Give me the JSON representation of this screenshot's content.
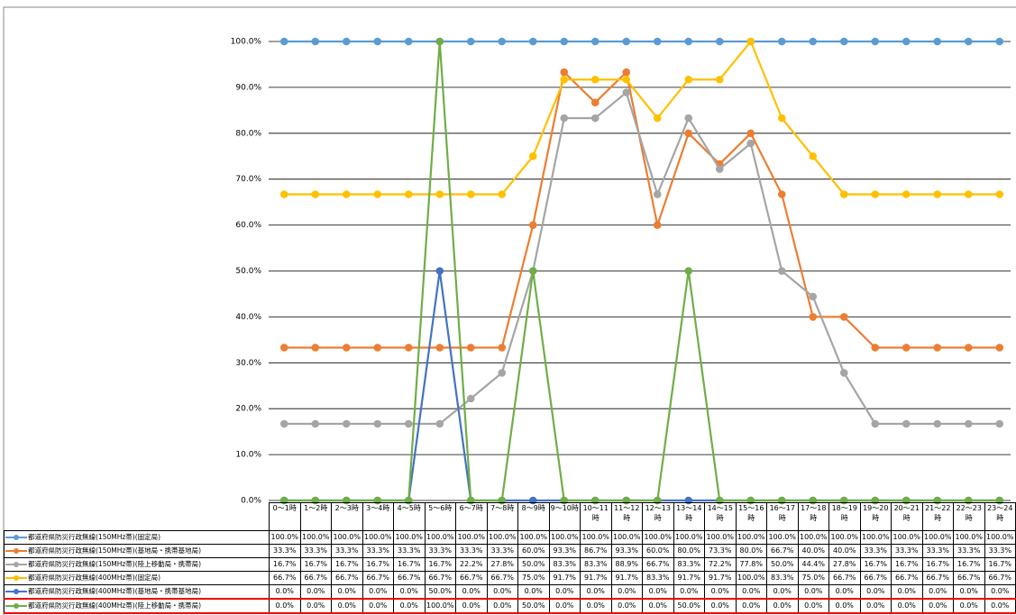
{
  "chart_data": {
    "type": "line",
    "categories": [
      "0～1時",
      "1～2時",
      "2～3時",
      "3～4時",
      "4～5時",
      "5～6時",
      "6～7時",
      "7～8時",
      "8～9時",
      "9～10時",
      "10～11時",
      "11～12時",
      "12～13時",
      "13～14時",
      "14～15時",
      "15～16時",
      "16～17時",
      "17～18時",
      "18～19時",
      "19～20時",
      "20～21時",
      "21～22時",
      "22～23時",
      "23～24時"
    ],
    "ylim": [
      0,
      100
    ],
    "yticks": [
      {
        "value": 0,
        "label": "0.0%"
      },
      {
        "value": 10,
        "label": "10.0%"
      },
      {
        "value": 20,
        "label": "20.0%"
      },
      {
        "value": 30,
        "label": "30.0%"
      },
      {
        "value": 40,
        "label": "40.0%"
      },
      {
        "value": 50,
        "label": "50.0%"
      },
      {
        "value": 60,
        "label": "60.0%"
      },
      {
        "value": 70,
        "label": "70.0%"
      },
      {
        "value": 80,
        "label": "80.0%"
      },
      {
        "value": 90,
        "label": "90.0%"
      },
      {
        "value": 100,
        "label": "100.0%"
      }
    ],
    "grid": true,
    "series": [
      {
        "name": "都道府県防災行政無線(150MHz帯)(固定局)",
        "color": "#5b9bd5",
        "values": [
          100,
          100,
          100,
          100,
          100,
          100,
          100,
          100,
          100,
          100,
          100,
          100,
          100,
          100,
          100,
          100,
          100,
          100,
          100,
          100,
          100,
          100,
          100,
          100
        ],
        "value_labels": [
          "100.0%",
          "100.0%",
          "100.0%",
          "100.0%",
          "100.0%",
          "100.0%",
          "100.0%",
          "100.0%",
          "100.0%",
          "100.0%",
          "100.0%",
          "100.0%",
          "100.0%",
          "100.0%",
          "100.0%",
          "100.0%",
          "100.0%",
          "100.0%",
          "100.0%",
          "100.0%",
          "100.0%",
          "100.0%",
          "100.0%",
          "100.0%"
        ]
      },
      {
        "name": "都道府県防災行政無線(150MHz帯)(基地局・携帯基地局)",
        "color": "#ed7d31",
        "values": [
          33.3,
          33.3,
          33.3,
          33.3,
          33.3,
          33.3,
          33.3,
          33.3,
          60.0,
          93.3,
          86.7,
          93.3,
          60.0,
          80.0,
          73.3,
          80.0,
          66.7,
          40.0,
          40.0,
          33.3,
          33.3,
          33.3,
          33.3,
          33.3
        ],
        "value_labels": [
          "33.3%",
          "33.3%",
          "33.3%",
          "33.3%",
          "33.3%",
          "33.3%",
          "33.3%",
          "33.3%",
          "60.0%",
          "93.3%",
          "86.7%",
          "93.3%",
          "60.0%",
          "80.0%",
          "73.3%",
          "80.0%",
          "66.7%",
          "40.0%",
          "40.0%",
          "33.3%",
          "33.3%",
          "33.3%",
          "33.3%",
          "33.3%"
        ]
      },
      {
        "name": "都道府県防災行政無線(150MHz帯)(陸上移動局・携帯局)",
        "color": "#a5a5a5",
        "values": [
          16.7,
          16.7,
          16.7,
          16.7,
          16.7,
          16.7,
          22.2,
          27.8,
          50.0,
          83.3,
          83.3,
          88.9,
          66.7,
          83.3,
          72.2,
          77.8,
          50.0,
          44.4,
          27.8,
          16.7,
          16.7,
          16.7,
          16.7,
          16.7
        ],
        "value_labels": [
          "16.7%",
          "16.7%",
          "16.7%",
          "16.7%",
          "16.7%",
          "16.7%",
          "22.2%",
          "27.8%",
          "50.0%",
          "83.3%",
          "83.3%",
          "88.9%",
          "66.7%",
          "83.3%",
          "72.2%",
          "77.8%",
          "50.0%",
          "44.4%",
          "27.8%",
          "16.7%",
          "16.7%",
          "16.7%",
          "16.7%",
          "16.7%"
        ]
      },
      {
        "name": "都道府県防災行政無線(400MHz帯)(固定局)",
        "color": "#ffc000",
        "values": [
          66.7,
          66.7,
          66.7,
          66.7,
          66.7,
          66.7,
          66.7,
          66.7,
          75.0,
          91.7,
          91.7,
          91.7,
          83.3,
          91.7,
          91.7,
          100.0,
          83.3,
          75.0,
          66.7,
          66.7,
          66.7,
          66.7,
          66.7,
          66.7
        ],
        "value_labels": [
          "66.7%",
          "66.7%",
          "66.7%",
          "66.7%",
          "66.7%",
          "66.7%",
          "66.7%",
          "66.7%",
          "75.0%",
          "91.7%",
          "91.7%",
          "91.7%",
          "83.3%",
          "91.7%",
          "91.7%",
          "100.0%",
          "83.3%",
          "75.0%",
          "66.7%",
          "66.7%",
          "66.7%",
          "66.7%",
          "66.7%",
          "66.7%"
        ]
      },
      {
        "name": "都道府県防災行政無線(400MHz帯)(基地局・携帯基地局)",
        "color": "#4472c4",
        "values": [
          0,
          0,
          0,
          0,
          0,
          50.0,
          0,
          0,
          0,
          0,
          0,
          0,
          0,
          0,
          0,
          0,
          0,
          0,
          0,
          0,
          0,
          0,
          0,
          0
        ],
        "value_labels": [
          "0.0%",
          "0.0%",
          "0.0%",
          "0.0%",
          "0.0%",
          "50.0%",
          "0.0%",
          "0.0%",
          "0.0%",
          "0.0%",
          "0.0%",
          "0.0%",
          "0.0%",
          "0.0%",
          "0.0%",
          "0.0%",
          "0.0%",
          "0.0%",
          "0.0%",
          "0.0%",
          "0.0%",
          "0.0%",
          "0.0%",
          "0.0%"
        ]
      },
      {
        "name": "都道府県防災行政無線(400MHz帯)(陸上移動局・携帯局)",
        "color": "#70ad47",
        "values": [
          0,
          0,
          0,
          0,
          0,
          100.0,
          0,
          0,
          50.0,
          0,
          0,
          0,
          0,
          50.0,
          0,
          0,
          0,
          0,
          0,
          0,
          0,
          0,
          0,
          0
        ],
        "value_labels": [
          "0.0%",
          "0.0%",
          "0.0%",
          "0.0%",
          "0.0%",
          "100.0%",
          "0.0%",
          "0.0%",
          "50.0%",
          "0.0%",
          "0.0%",
          "0.0%",
          "0.0%",
          "50.0%",
          "0.0%",
          "0.0%",
          "0.0%",
          "0.0%",
          "0.0%",
          "0.0%",
          "0.0%",
          "0.0%",
          "0.0%",
          "0.0%"
        ]
      }
    ]
  }
}
